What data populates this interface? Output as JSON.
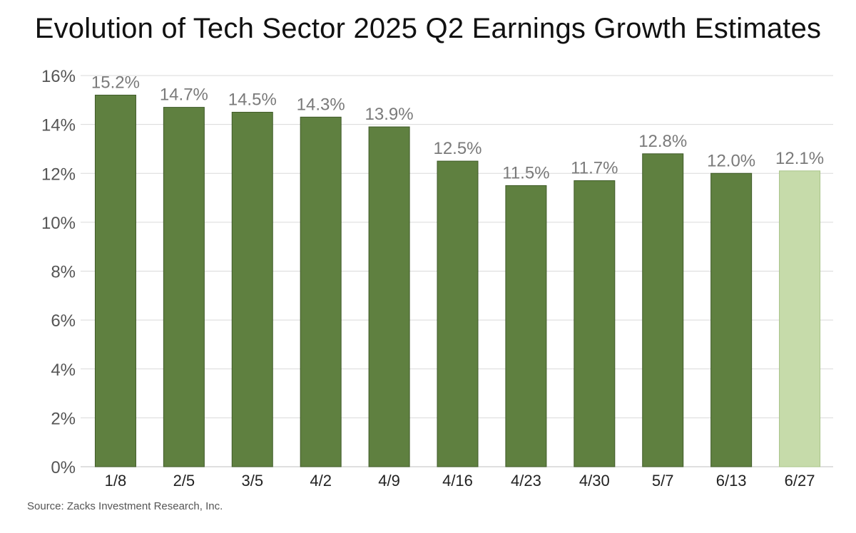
{
  "title": "Evolution of Tech Sector 2025 Q2 Earnings Growth Estimates",
  "source": "Source: Zacks Investment Research, Inc.",
  "colors": {
    "bar": "#5f8040",
    "bar_border": "#3f5a28",
    "bar_highlight": "#c6dbaa",
    "bar_highlight_border": "#a9c48a",
    "grid": "#d9d9d9"
  },
  "chart_data": {
    "type": "bar",
    "title": "Evolution of Tech Sector 2025 Q2 Earnings Growth Estimates",
    "categories": [
      "1/8",
      "2/5",
      "3/5",
      "4/2",
      "4/9",
      "4/16",
      "4/23",
      "4/30",
      "5/7",
      "6/13",
      "6/27"
    ],
    "values": [
      15.2,
      14.7,
      14.5,
      14.3,
      13.9,
      12.5,
      11.5,
      11.7,
      12.8,
      12.0,
      12.1
    ],
    "data_labels": [
      "15.2%",
      "14.7%",
      "14.5%",
      "14.3%",
      "13.9%",
      "12.5%",
      "11.5%",
      "11.7%",
      "12.8%",
      "12.0%",
      "12.1%"
    ],
    "highlight_last": true,
    "y_ticks": [
      0,
      2,
      4,
      6,
      8,
      10,
      12,
      14,
      16
    ],
    "y_tick_labels": [
      "0%",
      "2%",
      "4%",
      "6%",
      "8%",
      "10%",
      "12%",
      "14%",
      "16%"
    ],
    "ylim": [
      0,
      16
    ],
    "xlabel": "",
    "ylabel": "",
    "grid": true,
    "legend": "none"
  }
}
